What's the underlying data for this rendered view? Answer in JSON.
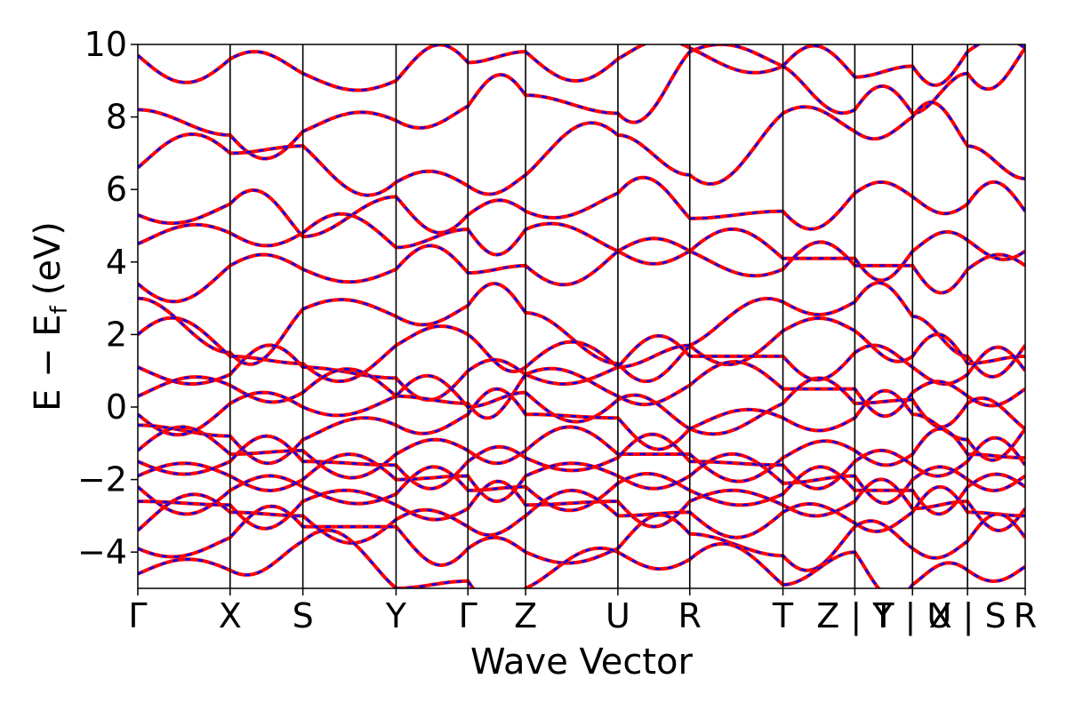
{
  "chart_data": {
    "type": "line",
    "title": "",
    "xlabel": "Wave Vector",
    "ylabel_main": "E − E",
    "ylabel_sub": "f",
    "ylabel_unit": "(eV)",
    "ylim": [
      -5,
      10
    ],
    "yticks": [
      -4,
      -2,
      0,
      2,
      4,
      6,
      8,
      10
    ],
    "ytick_labels": [
      "−4",
      "−2",
      "0",
      "2",
      "4",
      "6",
      "8",
      "10"
    ],
    "kpath_labels": [
      "Γ",
      "X",
      "S",
      "Y",
      "Γ",
      "Z",
      "U",
      "R",
      "T",
      "Z | Y",
      "T | U",
      "X | S",
      "R"
    ],
    "kpath_positions": [
      0.0,
      0.104,
      0.186,
      0.291,
      0.372,
      0.437,
      0.541,
      0.622,
      0.727,
      0.808,
      0.873,
      0.935,
      1.0
    ],
    "grid": false,
    "legend": "none",
    "colors": {
      "band_solid": "#ff0000",
      "band_dashed": "#0000ff",
      "axis": "#000000"
    },
    "series": [
      {
        "name": "",
        "style": "solid",
        "color": "#ff0000"
      },
      {
        "name": "",
        "style": "dashed",
        "color": "#0000ff"
      }
    ],
    "bands_sample": [
      [
        9.7,
        9.6,
        9.2,
        9.0,
        9.5,
        9.8,
        9.6,
        9.9,
        9.4,
        9.1,
        9.4,
        9.8,
        9.9
      ],
      [
        8.2,
        7.5,
        7.6,
        7.9,
        8.3,
        8.6,
        8.1,
        9.8,
        9.4,
        8.2,
        8.1,
        9.2,
        9.9
      ],
      [
        6.6,
        7.0,
        7.2,
        6.2,
        6.1,
        6.4,
        7.5,
        6.4,
        8.1,
        7.6,
        8.0,
        7.2,
        6.3
      ],
      [
        5.3,
        5.6,
        4.7,
        5.8,
        5.3,
        5.4,
        5.9,
        5.2,
        5.4,
        5.9,
        5.8,
        5.6,
        5.4
      ],
      [
        4.5,
        4.8,
        4.8,
        4.4,
        4.9,
        4.9,
        4.3,
        4.3,
        4.1,
        4.1,
        4.3,
        4.6,
        4.3
      ],
      [
        3.4,
        3.9,
        3.8,
        3.8,
        3.7,
        3.9,
        4.3,
        4.3,
        3.8,
        3.9,
        3.9,
        3.8,
        3.9
      ],
      [
        3.0,
        1.5,
        2.7,
        2.5,
        2.8,
        2.6,
        1.2,
        1.7,
        2.9,
        2.9,
        2.5,
        1.4,
        1.7
      ],
      [
        2.0,
        1.4,
        1.2,
        1.7,
        2.0,
        1.1,
        1.1,
        1.7,
        2.1,
        2.1,
        1.4,
        1.2,
        1.4
      ],
      [
        1.1,
        0.9,
        1.1,
        0.8,
        1.0,
        0.9,
        1.1,
        1.4,
        1.4,
        1.5,
        1.1,
        0.9,
        1.0
      ],
      [
        0.3,
        0.6,
        0.4,
        0.3,
        0.1,
        0.9,
        0.3,
        0.6,
        0.5,
        0.5,
        0.4,
        0.3,
        0.5
      ],
      [
        -0.2,
        0.1,
        0.0,
        0.3,
        0.0,
        0.4,
        0.2,
        -0.6,
        0.1,
        0.1,
        0.2,
        0.1,
        -0.6
      ],
      [
        -0.5,
        -0.8,
        -0.9,
        -0.5,
        -0.2,
        -0.2,
        -0.3,
        -0.6,
        -0.3,
        -0.3,
        -0.2,
        -0.9,
        -0.6
      ],
      [
        -1.2,
        -1.3,
        -1.2,
        -1.3,
        -1.2,
        -1.2,
        -1.3,
        -1.3,
        -1.4,
        -1.2,
        -1.3,
        -1.3,
        -1.4
      ],
      [
        -1.5,
        -1.5,
        -1.5,
        -1.6,
        -1.5,
        -1.4,
        -1.4,
        -1.5,
        -1.6,
        -1.5,
        -1.6,
        -1.5,
        -1.6
      ],
      [
        -1.9,
        -1.9,
        -2.0,
        -2.0,
        -1.9,
        -1.9,
        -1.9,
        -1.9,
        -2.1,
        -1.9,
        -2.0,
        -2.0,
        -1.9
      ],
      [
        -2.2,
        -2.3,
        -2.2,
        -2.4,
        -2.3,
        -2.2,
        -2.1,
        -2.3,
        -2.4,
        -2.3,
        -2.3,
        -2.2,
        -2.2
      ],
      [
        -2.6,
        -2.7,
        -2.6,
        -2.7,
        -2.8,
        -2.7,
        -2.6,
        -2.6,
        -2.7,
        -2.6,
        -2.8,
        -2.6,
        -2.8
      ],
      [
        -3.4,
        -2.9,
        -3.0,
        -3.1,
        -3.3,
        -3.0,
        -3.0,
        -2.9,
        -2.9,
        -3.2,
        -2.9,
        -2.9,
        -3.0
      ],
      [
        -3.9,
        -3.6,
        -3.3,
        -3.3,
        -3.9,
        -4.0,
        -3.9,
        -3.5,
        -4.1,
        -3.3,
        -3.9,
        -3.7,
        -3.6
      ],
      [
        -4.6,
        -4.5,
        -3.7,
        -5.0,
        -4.8,
        -5.0,
        -4.0,
        -4.2,
        -4.9,
        -4.0,
        -4.9,
        -4.5,
        -4.4
      ]
    ]
  }
}
